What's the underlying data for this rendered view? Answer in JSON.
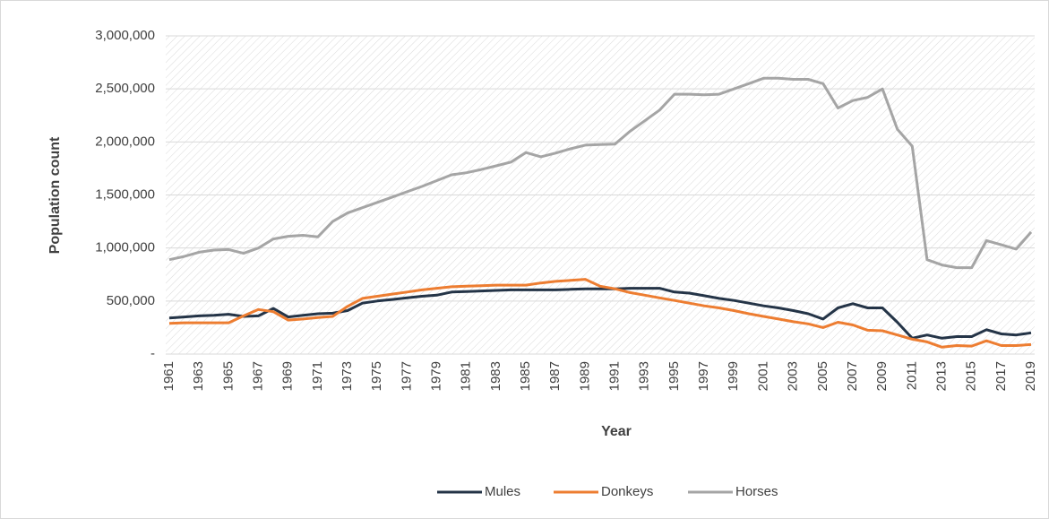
{
  "chart_data": {
    "type": "line",
    "x_label": "Year",
    "y_label": "Population count",
    "categories": [
      "1961",
      null,
      "1963",
      null,
      "1965",
      null,
      "1967",
      null,
      "1969",
      null,
      "1971",
      null,
      "1973",
      null,
      "1975",
      null,
      "1977",
      null,
      "1979",
      null,
      "1981",
      null,
      "1983",
      null,
      "1985",
      null,
      "1987",
      null,
      "1989",
      null,
      "1991",
      null,
      "1993",
      null,
      "1995",
      null,
      "1997",
      null,
      "1999",
      null,
      "2001",
      null,
      "2003",
      null,
      "2005",
      null,
      "2007",
      null,
      "2009",
      null,
      "2011",
      null,
      "2013",
      null,
      "2015",
      null,
      "2017",
      null,
      "2019"
    ],
    "series": [
      {
        "name": "Mules",
        "color": "#243447",
        "values": [
          340000,
          350000,
          360000,
          365000,
          375000,
          355000,
          360000,
          430000,
          350000,
          365000,
          380000,
          385000,
          410000,
          480000,
          500000,
          515000,
          530000,
          545000,
          555000,
          585000,
          590000,
          595000,
          600000,
          605000,
          605000,
          605000,
          605000,
          610000,
          615000,
          615000,
          615000,
          620000,
          620000,
          620000,
          585000,
          575000,
          550000,
          525000,
          505000,
          480000,
          455000,
          435000,
          410000,
          380000,
          330000,
          435000,
          475000,
          435000,
          435000,
          300000,
          150000,
          180000,
          150000,
          165000,
          165000,
          230000,
          190000,
          180000,
          200000
        ]
      },
      {
        "name": "Donkeys",
        "color": "#ed7d31",
        "values": [
          290000,
          295000,
          295000,
          295000,
          295000,
          360000,
          420000,
          400000,
          320000,
          330000,
          345000,
          355000,
          450000,
          525000,
          545000,
          565000,
          585000,
          605000,
          620000,
          635000,
          640000,
          645000,
          650000,
          650000,
          650000,
          670000,
          685000,
          695000,
          705000,
          640000,
          615000,
          580000,
          555000,
          530000,
          505000,
          480000,
          455000,
          435000,
          410000,
          380000,
          355000,
          330000,
          305000,
          285000,
          250000,
          300000,
          275000,
          225000,
          220000,
          180000,
          140000,
          115000,
          65000,
          80000,
          75000,
          125000,
          80000,
          80000,
          90000
        ]
      },
      {
        "name": "Horses",
        "color": "#a5a5a5",
        "values": [
          890000,
          920000,
          960000,
          980000,
          985000,
          950000,
          1000000,
          1085000,
          1110000,
          1120000,
          1105000,
          1250000,
          1330000,
          1380000,
          1430000,
          1480000,
          1530000,
          1580000,
          1635000,
          1690000,
          1710000,
          1740000,
          1775000,
          1810000,
          1900000,
          1860000,
          1895000,
          1935000,
          1970000,
          1975000,
          1980000,
          2100000,
          2200000,
          2300000,
          2450000,
          2450000,
          2445000,
          2450000,
          2500000,
          2550000,
          2600000,
          2600000,
          2590000,
          2590000,
          2550000,
          2320000,
          2390000,
          2420000,
          2500000,
          2120000,
          1960000,
          890000,
          840000,
          815000,
          815000,
          1070000,
          1030000,
          990000,
          1150000
        ]
      }
    ],
    "ylim": [
      0,
      3000000
    ],
    "yticks": [
      {
        "value": 0,
        "label": "-"
      },
      {
        "value": 500000,
        "label": "500,000"
      },
      {
        "value": 1000000,
        "label": "1,000,000"
      },
      {
        "value": 1500000,
        "label": "1,500,000"
      },
      {
        "value": 2000000,
        "label": "2,000,000"
      },
      {
        "value": 2500000,
        "label": "2,500,000"
      },
      {
        "value": 3000000,
        "label": "3,000,000"
      }
    ],
    "grid": true,
    "legend": "bottom"
  }
}
